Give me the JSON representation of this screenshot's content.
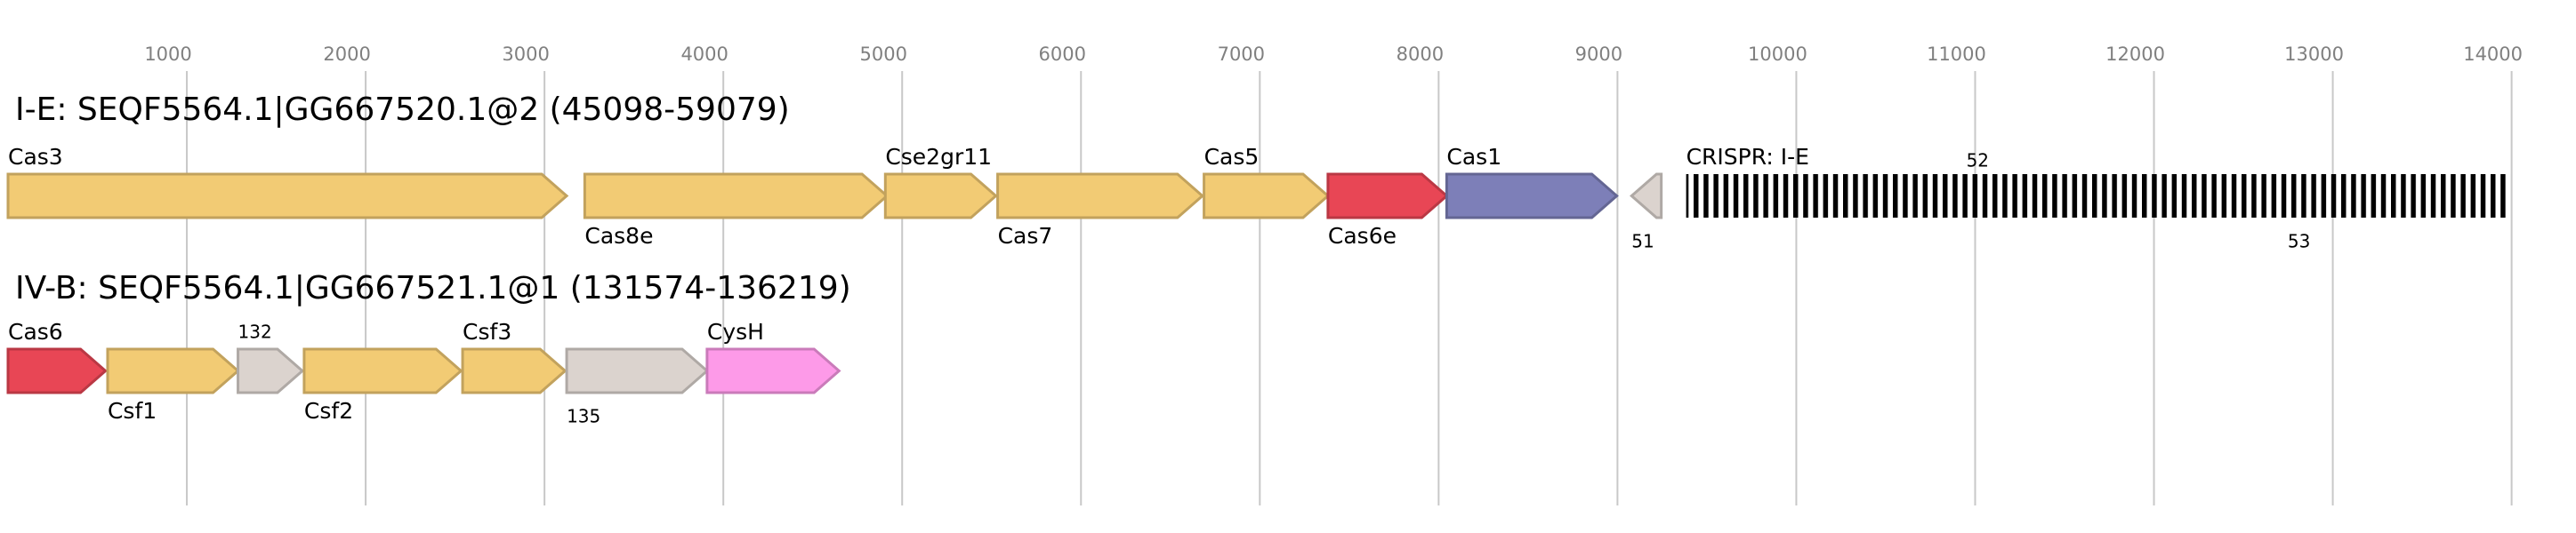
{
  "chart_data": {
    "type": "genome",
    "xlim": [
      0,
      14360
    ],
    "xticks": [
      1000,
      2000,
      3000,
      4000,
      5000,
      6000,
      7000,
      8000,
      9000,
      10000,
      11000,
      12000,
      13000,
      14000
    ],
    "grid": true,
    "tracks": [
      {
        "title": "I-E: SEQF5564.1|GG667520.1@2 (45098-59079)",
        "features": [
          {
            "label": "Cas3",
            "start": 0,
            "end": 3124,
            "strand": "+",
            "color": "#f2cb74"
          },
          {
            "label": "Cas8e",
            "start": 3225,
            "end": 4915,
            "strand": "+",
            "color": "#f2cb74"
          },
          {
            "label": "Cse2gr11",
            "start": 4906,
            "end": 5524,
            "strand": "+",
            "color": "#f2cb74"
          },
          {
            "label": "Cas7",
            "start": 5534,
            "end": 6679,
            "strand": "+",
            "color": "#f2cb74"
          },
          {
            "label": "Cas5",
            "start": 6688,
            "end": 7381,
            "strand": "+",
            "color": "#f2cb74"
          },
          {
            "label": "Cas6e",
            "start": 7381,
            "end": 8045,
            "strand": "+",
            "color": "#e84655"
          },
          {
            "label": "Cas1",
            "start": 8045,
            "end": 8996,
            "strand": "+",
            "color": "#7d7fb8"
          },
          {
            "label": "51",
            "start": 9079,
            "end": 9245,
            "strand": "-",
            "color": "#dbd3ce"
          },
          {
            "label": "CRISPR: I-E",
            "start": 9384,
            "end": 13992,
            "kind": "crispr",
            "color": "#000000",
            "extra_labels": [
              "52",
              "53"
            ]
          }
        ]
      },
      {
        "title": "IV-B: SEQF5564.1|GG667521.1@1 (131574-136219)",
        "features": [
          {
            "label": "Cas6",
            "start": 0,
            "end": 545,
            "strand": "+",
            "color": "#e84655"
          },
          {
            "label": "Csf1",
            "start": 557,
            "end": 1286,
            "strand": "+",
            "color": "#f2cb74"
          },
          {
            "label": "132",
            "start": 1286,
            "end": 1646,
            "strand": "+",
            "color": "#dbd3ce"
          },
          {
            "label": "Csf2",
            "start": 1656,
            "end": 2533,
            "strand": "+",
            "color": "#f2cb74"
          },
          {
            "label": "Csf3",
            "start": 2542,
            "end": 3115,
            "strand": "+",
            "color": "#f2cb74"
          },
          {
            "label": "135",
            "start": 3124,
            "end": 3909,
            "strand": "+",
            "color": "#dbd3ce"
          },
          {
            "label": "CysH",
            "start": 3909,
            "end": 4647,
            "strand": "+",
            "color": "#fd9ae8"
          }
        ]
      }
    ]
  }
}
